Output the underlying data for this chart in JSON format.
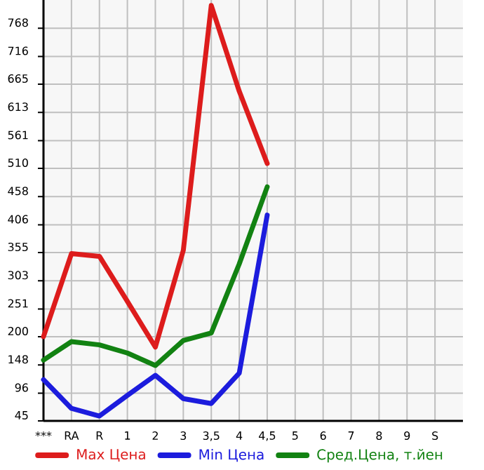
{
  "chart_data": {
    "type": "line",
    "categories": [
      "***",
      "RA",
      "R",
      "1",
      "2",
      "3",
      "3,5",
      "4",
      "4,5",
      "5",
      "6",
      "7",
      "8",
      "9",
      "S"
    ],
    "series": [
      {
        "name": "Max Цена",
        "color": "#dd1c1c",
        "values": [
          200,
          353,
          348,
          265,
          181,
          359,
          810,
          652,
          519,
          null,
          null,
          null,
          null,
          null,
          null
        ]
      },
      {
        "name": "Min Цена",
        "color": "#1c1cdd",
        "values": [
          121,
          68,
          54,
          92,
          129,
          86,
          77,
          133,
          424,
          null,
          null,
          null,
          null,
          null,
          null
        ]
      },
      {
        "name": "Сред.Цена, т.йен",
        "color": "#128212",
        "values": [
          157,
          191,
          185,
          170,
          147,
          193,
          207,
          334,
          476,
          null,
          null,
          null,
          null,
          null,
          null
        ]
      }
    ],
    "ylim": [
      45,
      820
    ],
    "yticks": [
      45,
      96,
      148,
      200,
      251,
      303,
      355,
      406,
      458,
      510,
      561,
      613,
      665,
      716,
      768
    ],
    "grid": true,
    "legend": "bottom",
    "marker": "none",
    "line_style": "solid"
  }
}
